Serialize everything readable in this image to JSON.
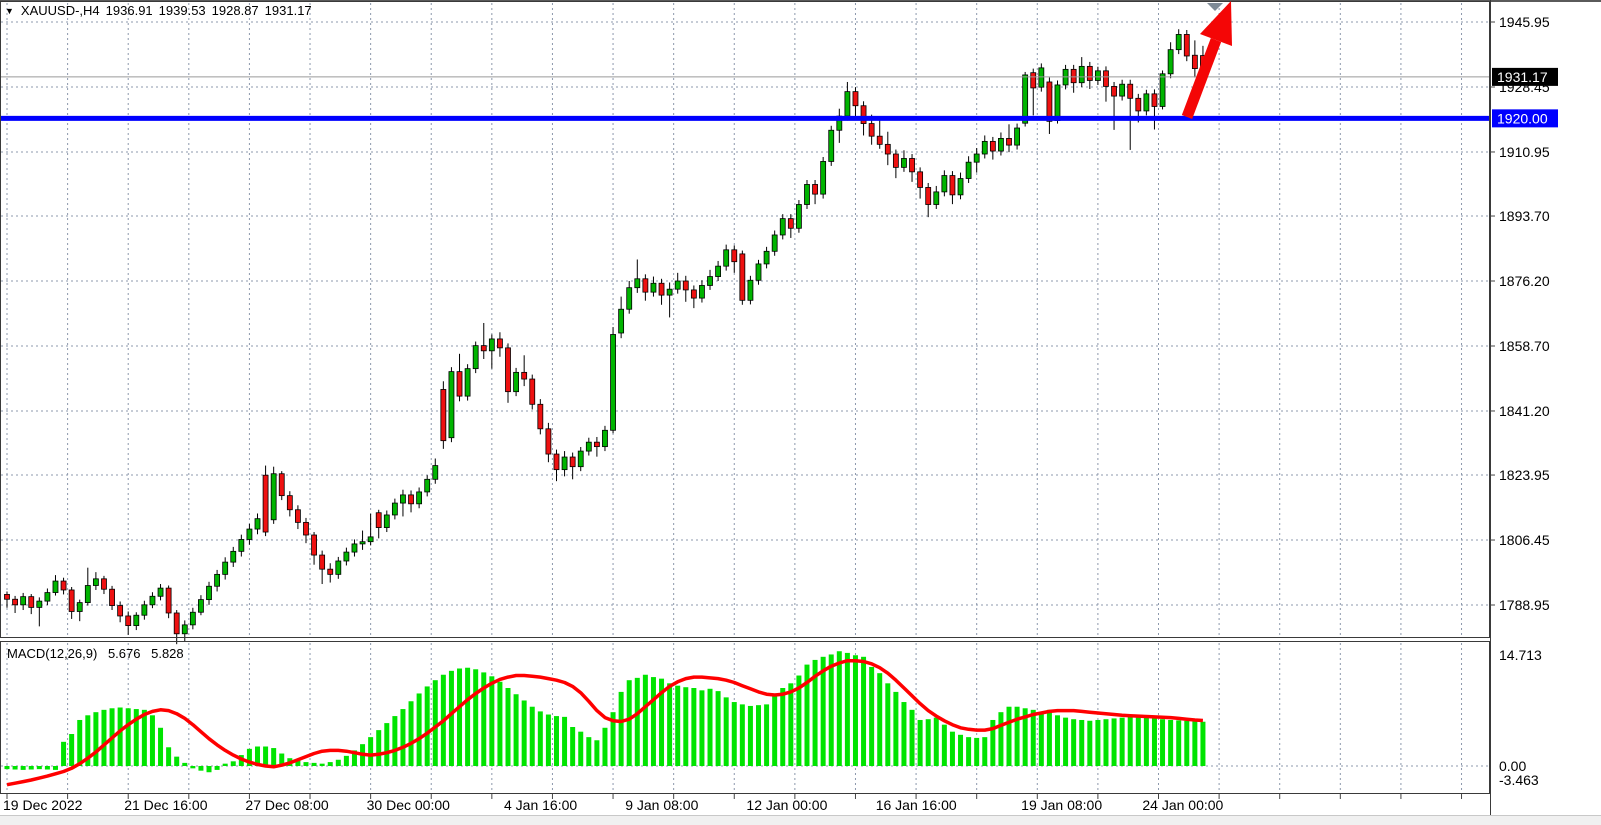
{
  "header": {
    "symbol_period": "XAUUSD-,H4",
    "open": "1936.91",
    "high": "1939.53",
    "low": "1928.87",
    "close": "1931.17"
  },
  "macd_header": {
    "label": "MACD(12,26,9)",
    "main_value": "5.676",
    "signal_value": "5.828"
  },
  "colors": {
    "background": "#ffffff",
    "panel_border": "#3a3a3a",
    "grid": "#8c98ac",
    "candle_up": "#00b400",
    "candle_down": "#ee1111",
    "candle_outline": "#000000",
    "macd_histogram": "#00e400",
    "macd_signal": "#ff0000",
    "support_line": "#0000ff",
    "price_line": "#9a9a9a",
    "price_tag_bg": "#000000",
    "support_tag_bg": "#0000ff",
    "tag_text": "#ffffff",
    "trend_arrow": "#f40606",
    "shift_marker": "#7e8a96",
    "axis_text": "#000000",
    "bottom_strip": "#f0f0f0"
  },
  "chart_data": [
    {
      "type": "candlestick",
      "title": "XAUUSD- H4 price panel",
      "y_axis_labels": [
        1945.95,
        1928.45,
        1910.95,
        1893.7,
        1876.2,
        1858.7,
        1841.2,
        1823.95,
        1806.45,
        1788.95
      ],
      "current_price": 1931.17,
      "support_level": 1920.0,
      "x_axis_labels": [
        {
          "i": 0,
          "label": "19 Dec 2022"
        },
        {
          "i": 15,
          "label": "21 Dec 16:00"
        },
        {
          "i": 30,
          "label": "27 Dec 08:00"
        },
        {
          "i": 45,
          "label": "30 Dec 00:00"
        },
        {
          "i": 62,
          "label": "4 Jan 16:00"
        },
        {
          "i": 77,
          "label": "9 Jan 08:00"
        },
        {
          "i": 92,
          "label": "12 Jan 00:00"
        },
        {
          "i": 108,
          "label": "16 Jan 16:00"
        },
        {
          "i": 126,
          "label": "19 Jan 08:00"
        },
        {
          "i": 141,
          "label": "24 Jan 00:00"
        }
      ],
      "ohlc": [
        [
          1791.8,
          1792.6,
          1788.2,
          1790.5
        ],
        [
          1790.5,
          1791.4,
          1786.8,
          1789.0
        ],
        [
          1789.0,
          1792.2,
          1787.6,
          1791.2
        ],
        [
          1791.2,
          1791.9,
          1786.5,
          1788.3
        ],
        [
          1788.3,
          1791.0,
          1783.2,
          1790.0
        ],
        [
          1790.0,
          1793.4,
          1788.9,
          1792.3
        ],
        [
          1792.3,
          1797.0,
          1791.5,
          1795.4
        ],
        [
          1795.4,
          1796.3,
          1791.8,
          1793.0
        ],
        [
          1793.0,
          1793.8,
          1785.2,
          1787.2
        ],
        [
          1787.2,
          1790.4,
          1784.6,
          1789.6
        ],
        [
          1789.6,
          1799.0,
          1788.8,
          1794.2
        ],
        [
          1794.2,
          1797.8,
          1793.0,
          1796.0
        ],
        [
          1796.0,
          1796.8,
          1791.9,
          1793.2
        ],
        [
          1793.2,
          1794.1,
          1787.6,
          1788.8
        ],
        [
          1788.8,
          1789.9,
          1784.3,
          1786.0
        ],
        [
          1786.0,
          1787.2,
          1780.9,
          1783.4
        ],
        [
          1783.4,
          1787.0,
          1782.2,
          1786.2
        ],
        [
          1786.2,
          1790.1,
          1785.0,
          1789.0
        ],
        [
          1789.0,
          1792.4,
          1788.1,
          1791.3
        ],
        [
          1791.3,
          1794.6,
          1790.2,
          1793.5
        ],
        [
          1793.5,
          1794.2,
          1785.4,
          1786.8
        ],
        [
          1786.8,
          1787.6,
          1778.4,
          1781.2
        ],
        [
          1781.2,
          1784.8,
          1779.0,
          1783.6
        ],
        [
          1783.6,
          1788.2,
          1782.4,
          1787.0
        ],
        [
          1787.0,
          1791.6,
          1786.2,
          1790.4
        ],
        [
          1790.4,
          1795.2,
          1789.0,
          1794.0
        ],
        [
          1794.0,
          1798.4,
          1792.6,
          1797.2
        ],
        [
          1797.2,
          1801.8,
          1795.8,
          1800.5
        ],
        [
          1800.5,
          1804.6,
          1799.2,
          1803.4
        ],
        [
          1803.4,
          1807.9,
          1802.0,
          1806.6
        ],
        [
          1806.6,
          1810.8,
          1805.2,
          1809.4
        ],
        [
          1809.4,
          1813.6,
          1808.0,
          1812.2
        ],
        [
          1823.9,
          1826.5,
          1807.5,
          1808.6
        ],
        [
          1811.9,
          1826.2,
          1810.8,
          1824.3
        ],
        [
          1824.3,
          1825.0,
          1817.2,
          1818.4
        ],
        [
          1818.4,
          1819.6,
          1812.8,
          1814.6
        ],
        [
          1814.6,
          1815.8,
          1809.4,
          1811.2
        ],
        [
          1811.2,
          1812.4,
          1805.6,
          1807.8
        ],
        [
          1807.8,
          1808.6,
          1799.8,
          1802.4
        ],
        [
          1802.4,
          1803.6,
          1794.6,
          1798.6
        ],
        [
          1798.6,
          1800.2,
          1795.0,
          1797.2
        ],
        [
          1797.2,
          1801.9,
          1796.0,
          1800.8
        ],
        [
          1800.8,
          1804.4,
          1799.6,
          1803.2
        ],
        [
          1803.2,
          1806.6,
          1802.0,
          1805.4
        ],
        [
          1805.4,
          1809.0,
          1803.8,
          1806.0
        ],
        [
          1806.0,
          1813.5,
          1805.0,
          1807.3
        ],
        [
          1813.8,
          1814.6,
          1806.9,
          1809.8
        ],
        [
          1809.8,
          1814.4,
          1808.6,
          1813.2
        ],
        [
          1813.2,
          1817.6,
          1812.0,
          1816.4
        ],
        [
          1816.4,
          1820.0,
          1812.8,
          1818.6
        ],
        [
          1818.6,
          1819.8,
          1813.9,
          1816.2
        ],
        [
          1816.2,
          1820.6,
          1815.0,
          1819.4
        ],
        [
          1819.4,
          1823.9,
          1818.2,
          1822.8
        ],
        [
          1822.8,
          1828.4,
          1821.6,
          1826.5
        ],
        [
          1847.0,
          1849.2,
          1831.0,
          1833.2
        ],
        [
          1834.0,
          1853.0,
          1832.8,
          1851.8
        ],
        [
          1851.8,
          1856.6,
          1843.8,
          1845.2
        ],
        [
          1845.2,
          1853.8,
          1844.0,
          1852.6
        ],
        [
          1852.6,
          1859.9,
          1851.4,
          1858.8
        ],
        [
          1858.8,
          1864.9,
          1855.2,
          1857.4
        ],
        [
          1857.4,
          1861.8,
          1852.6,
          1860.6
        ],
        [
          1860.6,
          1862.4,
          1855.8,
          1858.2
        ],
        [
          1858.2,
          1859.4,
          1843.4,
          1846.4
        ],
        [
          1846.4,
          1852.8,
          1845.2,
          1851.6
        ],
        [
          1851.6,
          1856.2,
          1847.9,
          1849.8
        ],
        [
          1849.8,
          1851.0,
          1841.6,
          1843.0
        ],
        [
          1843.0,
          1844.4,
          1834.9,
          1836.4
        ],
        [
          1836.4,
          1838.0,
          1827.4,
          1829.6
        ],
        [
          1829.6,
          1830.8,
          1822.3,
          1825.4
        ],
        [
          1825.4,
          1830.4,
          1823.6,
          1828.8
        ],
        [
          1828.8,
          1830.0,
          1822.8,
          1826.2
        ],
        [
          1826.2,
          1831.5,
          1825.0,
          1830.4
        ],
        [
          1830.4,
          1834.0,
          1829.2,
          1832.8
        ],
        [
          1832.8,
          1834.2,
          1828.9,
          1831.6
        ],
        [
          1831.6,
          1837.2,
          1830.4,
          1836.0
        ],
        [
          1836.0,
          1863.8,
          1835.2,
          1861.8
        ],
        [
          1862.2,
          1872.0,
          1860.8,
          1868.6
        ],
        [
          1868.6,
          1876.2,
          1867.4,
          1874.4
        ],
        [
          1874.4,
          1882.0,
          1873.0,
          1876.8
        ],
        [
          1876.8,
          1878.0,
          1870.9,
          1873.2
        ],
        [
          1873.2,
          1877.4,
          1872.0,
          1875.6
        ],
        [
          1875.6,
          1876.8,
          1869.8,
          1872.4
        ],
        [
          1872.4,
          1875.8,
          1866.4,
          1874.0
        ],
        [
          1874.0,
          1878.4,
          1872.8,
          1876.2
        ],
        [
          1876.2,
          1877.6,
          1870.6,
          1873.8
        ],
        [
          1873.8,
          1875.0,
          1868.9,
          1871.6
        ],
        [
          1871.6,
          1876.4,
          1870.4,
          1875.0
        ],
        [
          1875.0,
          1879.2,
          1873.8,
          1877.4
        ],
        [
          1877.4,
          1881.6,
          1876.2,
          1880.2
        ],
        [
          1880.2,
          1886.0,
          1879.0,
          1884.6
        ],
        [
          1884.6,
          1885.8,
          1878.4,
          1881.4
        ],
        [
          1883.5,
          1884.4,
          1869.8,
          1871.0
        ],
        [
          1871.0,
          1877.6,
          1869.9,
          1876.4
        ],
        [
          1876.4,
          1881.9,
          1875.2,
          1880.8
        ],
        [
          1880.8,
          1885.4,
          1879.6,
          1884.2
        ],
        [
          1884.2,
          1889.8,
          1883.0,
          1888.6
        ],
        [
          1888.6,
          1894.2,
          1887.4,
          1893.0
        ],
        [
          1893.0,
          1894.2,
          1887.8,
          1890.4
        ],
        [
          1890.4,
          1898.0,
          1889.2,
          1896.8
        ],
        [
          1896.8,
          1903.4,
          1895.6,
          1902.2
        ],
        [
          1902.2,
          1903.4,
          1896.9,
          1899.6
        ],
        [
          1899.6,
          1909.6,
          1898.4,
          1908.4
        ],
        [
          1908.4,
          1918.0,
          1907.2,
          1916.8
        ],
        [
          1916.8,
          1922.6,
          1913.4,
          1920.6
        ],
        [
          1920.6,
          1929.8,
          1919.4,
          1927.2
        ],
        [
          1927.2,
          1928.4,
          1919.9,
          1923.4
        ],
        [
          1923.4,
          1924.6,
          1915.4,
          1918.6
        ],
        [
          1918.6,
          1921.0,
          1912.9,
          1915.2
        ],
        [
          1915.2,
          1919.8,
          1911.8,
          1913.0
        ],
        [
          1913.0,
          1916.4,
          1907.4,
          1910.4
        ],
        [
          1910.4,
          1911.6,
          1903.9,
          1906.8
        ],
        [
          1906.8,
          1911.4,
          1905.6,
          1909.2
        ],
        [
          1909.2,
          1910.4,
          1902.9,
          1905.6
        ],
        [
          1905.6,
          1906.8,
          1898.4,
          1901.4
        ],
        [
          1901.4,
          1902.6,
          1893.4,
          1896.8
        ],
        [
          1896.8,
          1901.8,
          1895.6,
          1900.2
        ],
        [
          1900.2,
          1906.0,
          1899.0,
          1904.6
        ],
        [
          1904.6,
          1905.8,
          1896.9,
          1899.4
        ],
        [
          1899.4,
          1905.4,
          1898.2,
          1903.8
        ],
        [
          1903.8,
          1909.8,
          1902.6,
          1908.2
        ],
        [
          1908.2,
          1912.0,
          1905.4,
          1910.4
        ],
        [
          1910.4,
          1915.4,
          1909.2,
          1913.8
        ],
        [
          1913.8,
          1915.0,
          1908.9,
          1911.2
        ],
        [
          1911.2,
          1916.2,
          1910.0,
          1914.6
        ],
        [
          1914.6,
          1918.4,
          1910.9,
          1912.8
        ],
        [
          1912.8,
          1918.6,
          1911.6,
          1917.4
        ],
        [
          1918.7,
          1932.5,
          1917.8,
          1931.7
        ],
        [
          1932.3,
          1933.4,
          1920.8,
          1928.2
        ],
        [
          1928.4,
          1934.8,
          1927.2,
          1933.6
        ],
        [
          1929.8,
          1931.0,
          1915.8,
          1919.2
        ],
        [
          1919.4,
          1930.2,
          1918.6,
          1929.0
        ],
        [
          1929.0,
          1934.4,
          1927.8,
          1933.2
        ],
        [
          1933.2,
          1934.4,
          1926.9,
          1929.6
        ],
        [
          1929.6,
          1936.5,
          1928.4,
          1934.0
        ],
        [
          1934.0,
          1935.2,
          1927.9,
          1930.2
        ],
        [
          1930.2,
          1933.9,
          1929.0,
          1932.8
        ],
        [
          1932.8,
          1934.0,
          1924.5,
          1928.6
        ],
        [
          1928.6,
          1929.8,
          1916.9,
          1926.0
        ],
        [
          1926.0,
          1930.4,
          1924.8,
          1929.2
        ],
        [
          1929.2,
          1930.4,
          1911.5,
          1925.4
        ],
        [
          1925.4,
          1926.6,
          1918.9,
          1922.0
        ],
        [
          1922.0,
          1927.7,
          1920.8,
          1926.6
        ],
        [
          1926.6,
          1927.8,
          1917.0,
          1923.2
        ],
        [
          1923.2,
          1932.9,
          1922.4,
          1932.0
        ],
        [
          1932.0,
          1940.5,
          1930.8,
          1938.5
        ],
        [
          1938.5,
          1944.0,
          1937.3,
          1942.6
        ],
        [
          1942.6,
          1943.8,
          1935.4,
          1936.8
        ],
        [
          1937.0,
          1941.0,
          1931.0,
          1933.4
        ],
        [
          1936.91,
          1939.53,
          1928.87,
          1931.17
        ]
      ]
    },
    {
      "type": "macd_histogram",
      "title": "MACD(12,26,9)",
      "y_axis_labels": [
        "14.713",
        "0.00",
        "-3.463"
      ],
      "histogram": [
        -0.4,
        -0.45,
        -0.5,
        -0.45,
        -0.4,
        -0.45,
        -0.5,
        3.1,
        4.1,
        5.9,
        6.5,
        6.9,
        7.2,
        7.4,
        7.5,
        7.4,
        7.3,
        7.2,
        6.5,
        4.9,
        2.4,
        1.2,
        0.4,
        -0.3,
        -0.6,
        -0.8,
        -0.5,
        0.3,
        0.6,
        1.4,
        2.2,
        2.5,
        2.5,
        2.3,
        1.6,
        1.0,
        0.7,
        0.5,
        0.4,
        0.3,
        0.5,
        0.8,
        1.3,
        2.0,
        2.8,
        3.7,
        4.6,
        5.5,
        6.4,
        7.3,
        8.3,
        9.3,
        10.2,
        11.0,
        11.7,
        12.2,
        12.5,
        12.6,
        12.4,
        12.0,
        11.5,
        10.8,
        10.0,
        9.2,
        8.4,
        7.6,
        7.0,
        6.6,
        6.4,
        6.3,
        5.0,
        4.4,
        3.7,
        3.3,
        4.9,
        6.9,
        9.5,
        11.0,
        11.3,
        11.7,
        11.4,
        11.2,
        10.6,
        10.3,
        10.1,
        10.0,
        9.7,
        9.9,
        9.6,
        8.8,
        8.2,
        7.9,
        7.7,
        7.8,
        7.9,
        9.3,
        10.0,
        10.6,
        11.6,
        13.0,
        13.6,
        14.0,
        14.3,
        14.713,
        14.5,
        14.2,
        14.0,
        12.7,
        11.9,
        10.6,
        9.5,
        8.2,
        7.2,
        5.9,
        6.0,
        6.2,
        5.3,
        4.4,
        4.0,
        3.7,
        3.6,
        3.7,
        5.9,
        6.9,
        7.6,
        7.6,
        7.4,
        7.2,
        6.9,
        7.2,
        6.5,
        6.2,
        6.0,
        5.9,
        5.8,
        5.9,
        6.0,
        6.1,
        6.2,
        6.3,
        6.3,
        6.2,
        6.1,
        6.0,
        5.9,
        5.85,
        5.8,
        5.75,
        5.676
      ],
      "signal": [
        -2.4,
        -2.2,
        -2.0,
        -1.8,
        -1.55,
        -1.3,
        -1.0,
        -0.7,
        -0.3,
        0.3,
        1.0,
        1.8,
        2.7,
        3.6,
        4.5,
        5.3,
        6.0,
        6.6,
        7.0,
        7.2,
        7.1,
        6.7,
        6.1,
        5.3,
        4.4,
        3.5,
        2.7,
        2.0,
        1.4,
        0.9,
        0.5,
        0.2,
        0.0,
        -0.1,
        0.1,
        0.4,
        0.8,
        1.2,
        1.6,
        1.9,
        2.0,
        2.0,
        1.9,
        1.7,
        1.5,
        1.4,
        1.5,
        1.7,
        2.0,
        2.4,
        2.9,
        3.5,
        4.2,
        5.0,
        5.8,
        6.7,
        7.6,
        8.5,
        9.3,
        10.0,
        10.6,
        11.1,
        11.4,
        11.6,
        11.6,
        11.5,
        11.4,
        11.2,
        11.0,
        10.7,
        10.2,
        9.4,
        8.3,
        7.1,
        6.2,
        5.8,
        5.7,
        6.0,
        6.7,
        7.6,
        8.5,
        9.4,
        10.2,
        10.8,
        11.2,
        11.4,
        11.4,
        11.3,
        11.2,
        11.0,
        10.7,
        10.3,
        9.9,
        9.5,
        9.2,
        9.1,
        9.2,
        9.5,
        10.0,
        10.7,
        11.5,
        12.2,
        12.8,
        13.2,
        13.5,
        13.5,
        13.4,
        13.1,
        12.6,
        11.9,
        11.0,
        10.0,
        9.0,
        8.0,
        7.1,
        6.4,
        5.8,
        5.3,
        4.9,
        4.7,
        4.6,
        4.6,
        4.8,
        5.2,
        5.6,
        6.0,
        6.3,
        6.6,
        6.8,
        7.0,
        7.1,
        7.1,
        7.1,
        7.0,
        6.9,
        6.8,
        6.7,
        6.6,
        6.5,
        6.45,
        6.4,
        6.35,
        6.3,
        6.25,
        6.2,
        6.1,
        6.0,
        5.9,
        5.828
      ]
    }
  ]
}
